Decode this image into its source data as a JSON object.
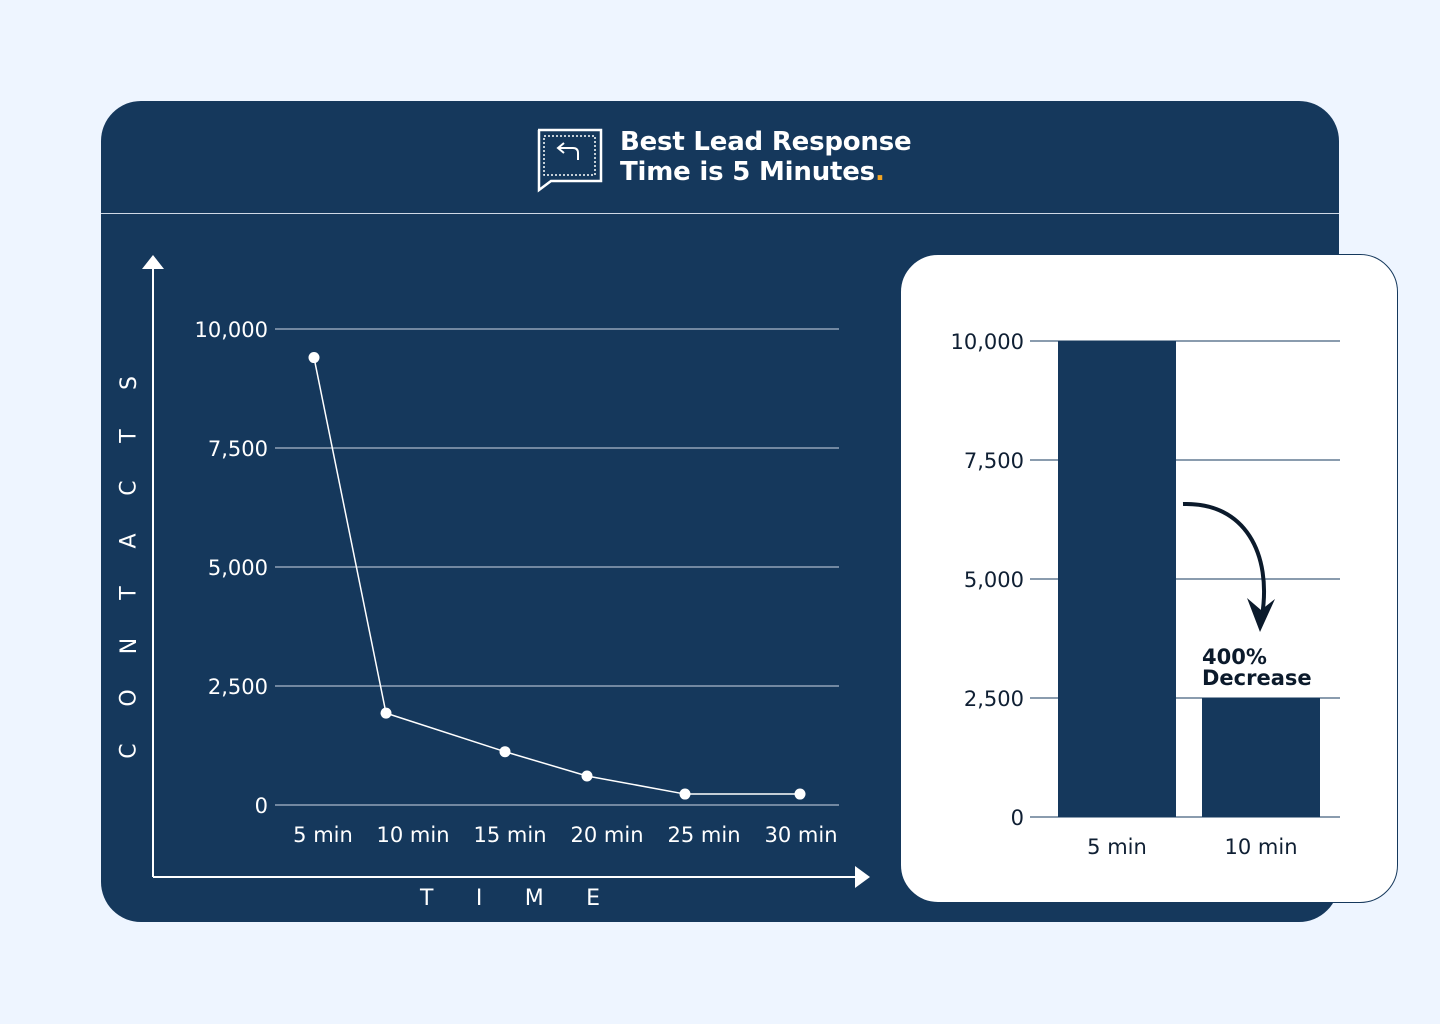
{
  "header": {
    "title_line1": "Best Lead Response",
    "title_line2": "Time is 5 Minutes",
    "title_dot": ".",
    "logo_icon": "reply-chat-icon"
  },
  "colors": {
    "navy": "#15385c",
    "background": "#eef5ff",
    "accent": "#f5a623",
    "white": "#ffffff"
  },
  "chart_data": [
    {
      "type": "line",
      "ylabel": "CONTACTS",
      "xlabel": "TIME",
      "categories": [
        "5 min",
        "10 min",
        "15 min",
        "20 min",
        "25 min",
        "30 min"
      ],
      "values": [
        9400,
        1930,
        1120,
        610,
        230,
        230
      ],
      "y_ticks": [
        0,
        2500,
        5000,
        7500,
        10000
      ],
      "y_tick_labels": [
        "0",
        "2,500",
        "5,000",
        "7,500",
        "10,000"
      ],
      "ylim": [
        0,
        10000
      ],
      "grid": true,
      "marker": "circle"
    },
    {
      "type": "bar",
      "categories": [
        "5 min",
        "10 min"
      ],
      "values": [
        10000,
        2500
      ],
      "y_ticks": [
        0,
        2500,
        5000,
        7500,
        10000
      ],
      "y_tick_labels": [
        "0",
        "2,500",
        "5,000",
        "7,500",
        "10,000"
      ],
      "ylim": [
        0,
        10000
      ],
      "grid": true,
      "annotation_line1": "400%",
      "annotation_line2": "Decrease",
      "annotation_icon": "curved-arrow-down-icon"
    }
  ]
}
